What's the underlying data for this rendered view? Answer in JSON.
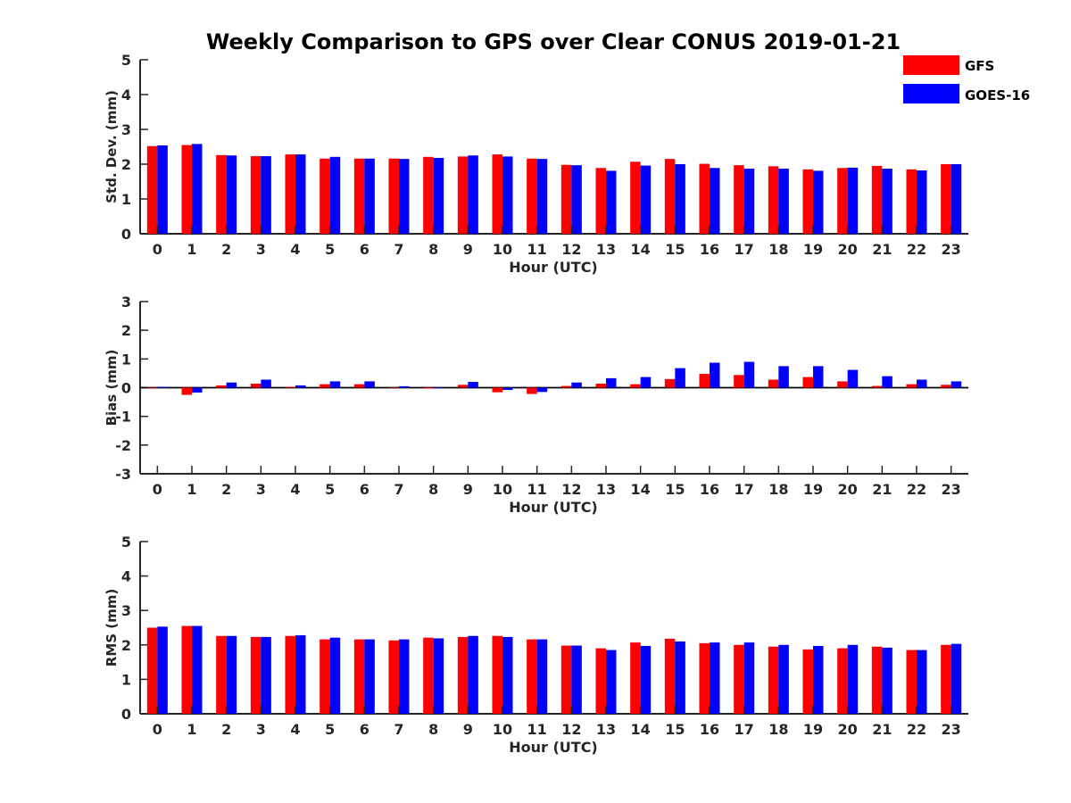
{
  "figure": {
    "title": "Weekly Comparison to GPS over Clear CONUS 2019-01-21"
  },
  "legend": {
    "position": "top-right",
    "entries": [
      {
        "label": "GFS",
        "color": "#ff0000"
      },
      {
        "label": "GOES-16",
        "color": "#0000ff"
      }
    ]
  },
  "chart_data": [
    {
      "type": "bar",
      "title": "Weekly Comparison to GPS over Clear CONUS 2019-01-21",
      "xlabel": "Hour (UTC)",
      "ylabel": "Std. Dev. (mm)",
      "ylim": [
        0,
        5
      ],
      "yticks": [
        "0",
        "1",
        "2",
        "3",
        "4",
        "5"
      ],
      "categories": [
        "0",
        "1",
        "2",
        "3",
        "4",
        "5",
        "6",
        "7",
        "8",
        "9",
        "10",
        "11",
        "12",
        "13",
        "14",
        "15",
        "16",
        "17",
        "18",
        "19",
        "20",
        "21",
        "22",
        "23"
      ],
      "series": [
        {
          "name": "GFS",
          "color": "#ff0000",
          "values": [
            2.52,
            2.55,
            2.26,
            2.23,
            2.28,
            2.16,
            2.16,
            2.16,
            2.21,
            2.22,
            2.28,
            2.16,
            1.98,
            1.89,
            2.07,
            2.15,
            2.01,
            1.97,
            1.94,
            1.85,
            1.89,
            1.95,
            1.85,
            2.0
          ]
        },
        {
          "name": "GOES-16",
          "color": "#0000ff",
          "values": [
            2.54,
            2.58,
            2.25,
            2.23,
            2.28,
            2.21,
            2.16,
            2.15,
            2.18,
            2.25,
            2.22,
            2.15,
            1.97,
            1.81,
            1.96,
            2.0,
            1.89,
            1.87,
            1.87,
            1.81,
            1.9,
            1.87,
            1.82,
            2.0
          ]
        }
      ]
    },
    {
      "type": "bar",
      "xlabel": "Hour (UTC)",
      "ylabel": "Bias (mm)",
      "ylim": [
        -3,
        3
      ],
      "yticks": [
        "-3",
        "-2",
        "-1",
        "0",
        "1",
        "2",
        "3"
      ],
      "categories": [
        "0",
        "1",
        "2",
        "3",
        "4",
        "5",
        "6",
        "7",
        "8",
        "9",
        "10",
        "11",
        "12",
        "13",
        "14",
        "15",
        "16",
        "17",
        "18",
        "19",
        "20",
        "21",
        "22",
        "23"
      ],
      "series": [
        {
          "name": "GFS",
          "color": "#ff0000",
          "values": [
            0.02,
            -0.25,
            0.08,
            0.14,
            0.03,
            0.12,
            0.12,
            0.0,
            -0.03,
            0.1,
            -0.16,
            -0.22,
            0.06,
            0.14,
            0.12,
            0.3,
            0.48,
            0.44,
            0.28,
            0.37,
            0.22,
            0.06,
            0.12,
            0.1
          ]
        },
        {
          "name": "GOES-16",
          "color": "#0000ff",
          "values": [
            0.03,
            -0.17,
            0.18,
            0.28,
            0.08,
            0.22,
            0.22,
            0.05,
            0.0,
            0.2,
            -0.08,
            -0.15,
            0.18,
            0.33,
            0.37,
            0.68,
            0.87,
            0.9,
            0.75,
            0.75,
            0.62,
            0.4,
            0.28,
            0.22
          ]
        }
      ]
    },
    {
      "type": "bar",
      "xlabel": "Hour (UTC)",
      "ylabel": "RMS (mm)",
      "ylim": [
        0,
        5
      ],
      "yticks": [
        "0",
        "1",
        "2",
        "3",
        "4",
        "5"
      ],
      "categories": [
        "0",
        "1",
        "2",
        "3",
        "4",
        "5",
        "6",
        "7",
        "8",
        "9",
        "10",
        "11",
        "12",
        "13",
        "14",
        "15",
        "16",
        "17",
        "18",
        "19",
        "20",
        "21",
        "22",
        "23"
      ],
      "series": [
        {
          "name": "GFS",
          "color": "#ff0000",
          "values": [
            2.5,
            2.55,
            2.26,
            2.23,
            2.26,
            2.16,
            2.16,
            2.13,
            2.21,
            2.23,
            2.26,
            2.16,
            1.98,
            1.9,
            2.07,
            2.18,
            2.05,
            2.0,
            1.95,
            1.87,
            1.9,
            1.95,
            1.85,
            2.0
          ]
        },
        {
          "name": "GOES-16",
          "color": "#0000ff",
          "values": [
            2.53,
            2.55,
            2.26,
            2.23,
            2.28,
            2.21,
            2.16,
            2.16,
            2.19,
            2.26,
            2.23,
            2.16,
            1.98,
            1.85,
            1.97,
            2.1,
            2.07,
            2.07,
            2.0,
            1.97,
            2.0,
            1.92,
            1.85,
            2.03
          ]
        }
      ]
    }
  ]
}
